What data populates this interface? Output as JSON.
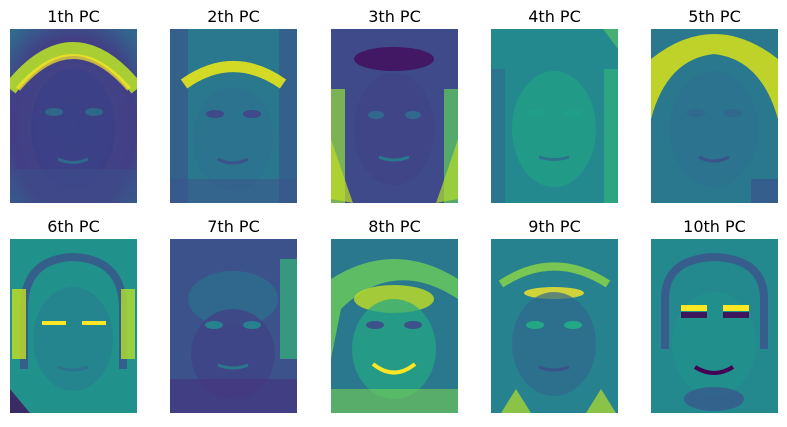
{
  "figure": {
    "panels": [
      {
        "title": "1th PC"
      },
      {
        "title": "2th PC"
      },
      {
        "title": "3th PC"
      },
      {
        "title": "4th PC"
      },
      {
        "title": "5th PC"
      },
      {
        "title": "6th PC"
      },
      {
        "title": "7th PC"
      },
      {
        "title": "8th PC"
      },
      {
        "title": "9th PC"
      },
      {
        "title": "10th PC"
      }
    ],
    "colormap": "viridis",
    "colors": {
      "dark_purple": "#440154",
      "deep_blue": "#3b528b",
      "blue": "#31688e",
      "teal": "#21918c",
      "green": "#35b779",
      "light_green": "#90d743",
      "yellow": "#fde725"
    }
  }
}
